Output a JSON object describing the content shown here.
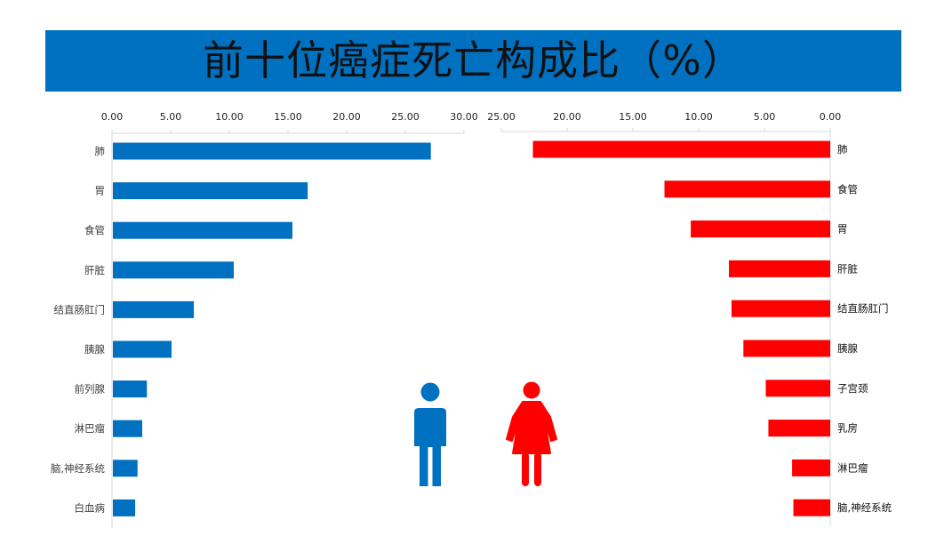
{
  "title": "前十位癌症死亡构成比（%）",
  "colors": {
    "title_bg": "#0070c0",
    "male": "#0070c0",
    "female": "#ff0000"
  },
  "icons": {
    "male": "male-figure-icon",
    "female": "female-figure-icon"
  },
  "chart_data": [
    {
      "type": "bar",
      "orientation": "horizontal",
      "series_color": "#0070c0",
      "categories": [
        "肺",
        "胃",
        "食管",
        "肝脏",
        "结直肠肛门",
        "胰腺",
        "前列腺",
        "淋巴瘤",
        "脑,神经系统",
        "白血病"
      ],
      "values": [
        27.1,
        16.6,
        15.3,
        10.3,
        6.9,
        5.0,
        2.9,
        2.5,
        2.1,
        1.9
      ],
      "xlim": [
        0,
        30
      ],
      "ticks": [
        "0.00",
        "5.00",
        "10.00",
        "15.00",
        "20.00",
        "25.00",
        "30.00"
      ],
      "tick_values": [
        0,
        5,
        10,
        15,
        20,
        25,
        30
      ],
      "axis_position": "top",
      "direction": "left-to-right",
      "grid": false
    },
    {
      "type": "bar",
      "orientation": "horizontal",
      "series_color": "#ff0000",
      "categories": [
        "肺",
        "食管",
        "胃",
        "肝脏",
        "结直肠肛门",
        "胰腺",
        "子宫颈",
        "乳房",
        "淋巴瘤",
        "脑,神经系统"
      ],
      "values": [
        22.6,
        12.6,
        10.6,
        7.7,
        7.5,
        6.6,
        4.9,
        4.7,
        2.9,
        2.8
      ],
      "xlim": [
        0,
        25
      ],
      "ticks": [
        "25.00",
        "20.00",
        "15.00",
        "10.00",
        "5.00",
        "0.00"
      ],
      "tick_values": [
        25,
        20,
        15,
        10,
        5,
        0
      ],
      "axis_position": "top",
      "direction": "right-to-left",
      "grid": false
    }
  ]
}
